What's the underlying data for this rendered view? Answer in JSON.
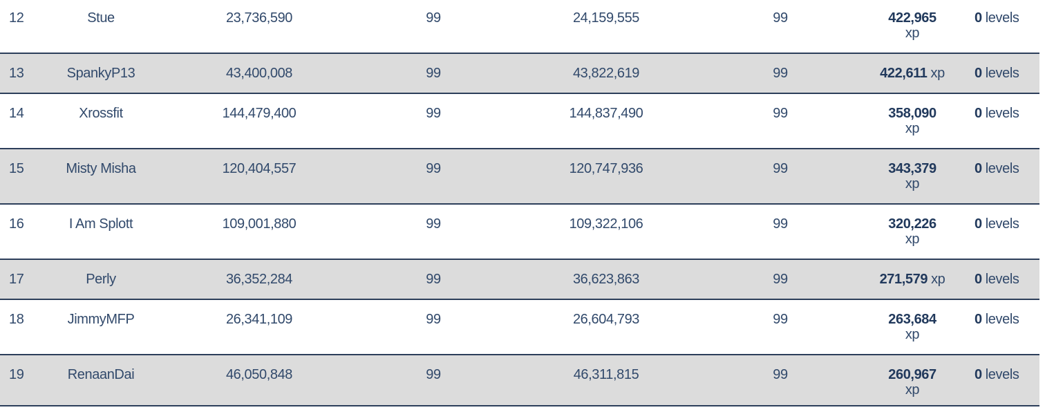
{
  "table": {
    "description": "xp-tracker-leaderboard-fragment",
    "columns": [
      "rank",
      "name",
      "start_xp",
      "start_level",
      "end_xp",
      "end_level",
      "gained_xp",
      "gained_levels"
    ],
    "units": {
      "xp": "xp",
      "levels": "levels"
    },
    "colors": {
      "text": "#31496b",
      "bold_text": "#21395c",
      "row_border": "#2c3e5a",
      "zebra_gray": "#dcdcdc",
      "background": "#ffffff"
    },
    "rows": [
      {
        "rank": "12",
        "name": "Stue",
        "start_xp": "23,736,590",
        "start_level": "99",
        "end_xp": "24,159,555",
        "end_level": "99",
        "gained_xp": "422,965",
        "gained_levels": "0",
        "xp_unit_wrapped": true,
        "zebra": "white"
      },
      {
        "rank": "13",
        "name": "SpankyP13",
        "start_xp": "43,400,008",
        "start_level": "99",
        "end_xp": "43,822,619",
        "end_level": "99",
        "gained_xp": "422,611",
        "gained_levels": "0",
        "xp_unit_wrapped": false,
        "zebra": "gray"
      },
      {
        "rank": "14",
        "name": "Xrossfit",
        "start_xp": "144,479,400",
        "start_level": "99",
        "end_xp": "144,837,490",
        "end_level": "99",
        "gained_xp": "358,090",
        "gained_levels": "0",
        "xp_unit_wrapped": true,
        "zebra": "white"
      },
      {
        "rank": "15",
        "name": "Misty Misha",
        "start_xp": "120,404,557",
        "start_level": "99",
        "end_xp": "120,747,936",
        "end_level": "99",
        "gained_xp": "343,379",
        "gained_levels": "0",
        "xp_unit_wrapped": true,
        "zebra": "gray"
      },
      {
        "rank": "16",
        "name": "I Am Splott",
        "start_xp": "109,001,880",
        "start_level": "99",
        "end_xp": "109,322,106",
        "end_level": "99",
        "gained_xp": "320,226",
        "gained_levels": "0",
        "xp_unit_wrapped": true,
        "zebra": "white"
      },
      {
        "rank": "17",
        "name": "Perly",
        "start_xp": "36,352,284",
        "start_level": "99",
        "end_xp": "36,623,863",
        "end_level": "99",
        "gained_xp": "271,579",
        "gained_levels": "0",
        "xp_unit_wrapped": false,
        "zebra": "gray"
      },
      {
        "rank": "18",
        "name": "JimmyMFP",
        "start_xp": "26,341,109",
        "start_level": "99",
        "end_xp": "26,604,793",
        "end_level": "99",
        "gained_xp": "263,684",
        "gained_levels": "0",
        "xp_unit_wrapped": true,
        "zebra": "white"
      },
      {
        "rank": "19",
        "name": "RenaanDai",
        "start_xp": "46,050,848",
        "start_level": "99",
        "end_xp": "46,311,815",
        "end_level": "99",
        "gained_xp": "260,967",
        "gained_levels": "0",
        "xp_unit_wrapped": true,
        "zebra": "gray"
      }
    ]
  }
}
